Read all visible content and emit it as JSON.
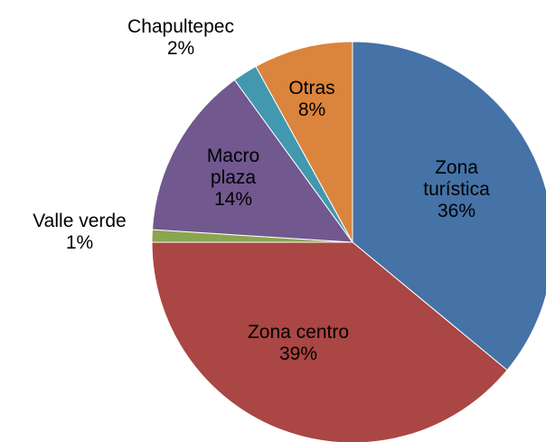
{
  "chart_data": {
    "type": "pie",
    "categories": [
      "Zona turística",
      "Zona centro",
      "Valle verde",
      "Macro plaza",
      "Chapultepec",
      "Otras"
    ],
    "values": [
      36,
      39,
      1,
      14,
      2,
      8
    ],
    "value_labels": [
      "36%",
      "39%",
      "1%",
      "14%",
      "2%",
      "8%"
    ],
    "colors": [
      "#4572A7",
      "#AA4643",
      "#89A54E",
      "#71588F",
      "#4198AF",
      "#DB843D"
    ]
  }
}
